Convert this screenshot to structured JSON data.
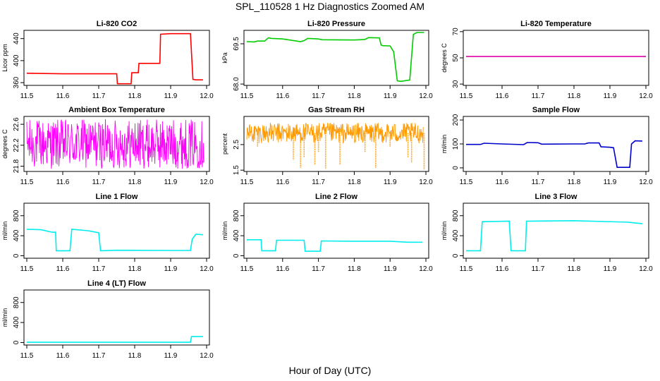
{
  "figure": {
    "title": "SPL_110528 1 Hz Diagnostics Zoomed AM",
    "xlabel": "Hour of Day (UTC)"
  },
  "chart_data": [
    {
      "type": "line",
      "title": "Li-820 CO2",
      "ylabel": "Licor ppm",
      "color": "#ff0000",
      "xlim": [
        11.5,
        12.0
      ],
      "ylim": [
        355,
        455
      ],
      "xticks": [
        "11.5",
        "11.6",
        "11.7",
        "11.8",
        "11.9",
        "12.0"
      ],
      "yticks": [
        360,
        400,
        440
      ],
      "yticklabels": [
        "360",
        "400",
        "440"
      ],
      "x": [
        11.5,
        11.6,
        11.7,
        11.75,
        11.752,
        11.78,
        11.79,
        11.792,
        11.8,
        11.81,
        11.812,
        11.85,
        11.87,
        11.872,
        11.9,
        11.955,
        11.962,
        11.97,
        11.99
      ],
      "y": [
        377,
        376,
        376,
        376,
        358,
        358,
        358,
        378,
        378,
        378,
        395,
        395,
        395,
        448,
        449,
        449,
        366,
        365,
        365
      ]
    },
    {
      "type": "line",
      "title": "Li-820 Pressure",
      "ylabel": "kPa",
      "color": "#00cc00",
      "xlim": [
        11.5,
        12.0
      ],
      "ylim": [
        67.95,
        70.0
      ],
      "xticks": [
        "11.5",
        "11.6",
        "11.7",
        "11.8",
        "11.9",
        "12.0"
      ],
      "yticks": [
        68.0,
        69.5
      ],
      "yticklabels": [
        "68.0",
        "69.5"
      ],
      "x": [
        11.5,
        11.52,
        11.53,
        11.55,
        11.56,
        11.57,
        11.6,
        11.65,
        11.66,
        11.67,
        11.7,
        11.71,
        11.8,
        11.83,
        11.84,
        11.87,
        11.875,
        11.88,
        11.9,
        11.91,
        11.92,
        11.93,
        11.955,
        11.965,
        11.975,
        11.995
      ],
      "y": [
        69.58,
        69.57,
        69.6,
        69.6,
        69.72,
        69.7,
        69.68,
        69.58,
        69.62,
        69.7,
        69.68,
        69.65,
        69.64,
        69.66,
        69.73,
        69.72,
        69.45,
        69.43,
        69.42,
        69.2,
        68.12,
        68.1,
        68.15,
        69.85,
        69.92,
        69.92
      ]
    },
    {
      "type": "line",
      "title": "Li-820 Temperature",
      "ylabel": "degrees C",
      "color": "#dd00aa",
      "xlim": [
        11.5,
        12.0
      ],
      "ylim": [
        29,
        71
      ],
      "xticks": [
        "11.5",
        "11.6",
        "11.7",
        "11.8",
        "11.9",
        "12.0"
      ],
      "yticks": [
        30,
        50,
        70
      ],
      "yticklabels": [
        "30",
        "50",
        "70"
      ],
      "x": [
        11.5,
        12.0
      ],
      "y": [
        51,
        51
      ]
    },
    {
      "type": "line",
      "title": "Ambient Box Temperature",
      "ylabel": "degrees C",
      "color": "#ff00ff",
      "style": "noisy",
      "xlim": [
        11.5,
        12.0
      ],
      "ylim": [
        21.7,
        22.75
      ],
      "xticks": [
        "11.5",
        "11.6",
        "11.7",
        "11.8",
        "11.9",
        "12.0"
      ],
      "yticks": [
        21.8,
        22.2,
        22.6
      ],
      "yticklabels": [
        "21.8",
        "22.2",
        "22.6"
      ],
      "x": [
        11.5,
        12.0
      ],
      "y": [
        22.3,
        22.3
      ],
      "band": [
        21.75,
        22.7
      ]
    },
    {
      "type": "line",
      "title": "Gas Stream RH",
      "ylabel": "percent",
      "color": "#ff9900",
      "style": "noisy",
      "xlim": [
        11.5,
        12.0
      ],
      "ylim": [
        1.45,
        3.6
      ],
      "xticks": [
        "11.5",
        "11.6",
        "11.7",
        "11.8",
        "11.9",
        "12.0"
      ],
      "yticks": [
        1.5,
        2.5
      ],
      "yticklabels": [
        "1.5",
        "2.5"
      ],
      "x": [
        11.5,
        12.0
      ],
      "y": [
        3.0,
        3.0
      ],
      "band": [
        2.55,
        3.35
      ],
      "spikes_x": [
        11.53,
        11.63,
        11.65,
        11.66,
        11.69,
        11.7,
        11.72,
        11.76,
        11.83,
        11.86,
        11.9,
        11.95,
        11.96,
        11.995
      ],
      "spikes_y": [
        2.4,
        1.9,
        1.6,
        2.0,
        1.7,
        2.2,
        1.55,
        1.7,
        2.2,
        1.6,
        2.4,
        2.0,
        1.8,
        1.5
      ]
    },
    {
      "type": "line",
      "title": "Sample Flow",
      "ylabel": "ml/min",
      "color": "#0000cc",
      "xlim": [
        11.5,
        12.0
      ],
      "ylim": [
        -15,
        215
      ],
      "xticks": [
        "11.5",
        "11.6",
        "11.7",
        "11.8",
        "11.9",
        "12.0"
      ],
      "yticks": [
        0,
        100,
        200
      ],
      "yticklabels": [
        "0",
        "100",
        "200"
      ],
      "x": [
        11.5,
        11.54,
        11.55,
        11.6,
        11.66,
        11.67,
        11.7,
        11.71,
        11.8,
        11.83,
        11.84,
        11.87,
        11.875,
        11.9,
        11.91,
        11.92,
        11.955,
        11.96,
        11.97,
        11.99
      ],
      "y": [
        98,
        98,
        103,
        100,
        97,
        106,
        105,
        99,
        100,
        100,
        104,
        104,
        88,
        86,
        84,
        2,
        2,
        100,
        113,
        112
      ]
    },
    {
      "type": "line",
      "title": "Line 1 Flow",
      "ylabel": "ml/min",
      "color": "#00eeee",
      "xlim": [
        11.5,
        12.0
      ],
      "ylim": [
        -50,
        1050
      ],
      "xticks": [
        "11.5",
        "11.6",
        "11.7",
        "11.8",
        "11.9",
        "12.0"
      ],
      "yticks": [
        0,
        400,
        800
      ],
      "yticklabels": [
        "0",
        "400",
        "800"
      ],
      "x": [
        11.5,
        11.54,
        11.57,
        11.58,
        11.582,
        11.62,
        11.625,
        11.67,
        11.7,
        11.705,
        11.75,
        11.9,
        11.955,
        11.96,
        11.97,
        11.99
      ],
      "y": [
        530,
        520,
        470,
        470,
        100,
        100,
        530,
        500,
        460,
        100,
        110,
        105,
        105,
        330,
        430,
        420
      ]
    },
    {
      "type": "line",
      "title": "Line 2 Flow",
      "ylabel": "ml/min",
      "color": "#00eeee",
      "xlim": [
        11.5,
        12.0
      ],
      "ylim": [
        -50,
        1050
      ],
      "xticks": [
        "11.5",
        "11.6",
        "11.7",
        "11.8",
        "11.9",
        "12.0"
      ],
      "yticks": [
        0,
        400,
        800
      ],
      "yticklabels": [
        "0",
        "400",
        "800"
      ],
      "x": [
        11.5,
        11.54,
        11.542,
        11.58,
        11.583,
        11.66,
        11.663,
        11.705,
        11.708,
        11.8,
        11.9,
        11.95,
        11.99
      ],
      "y": [
        320,
        320,
        100,
        100,
        310,
        310,
        90,
        90,
        295,
        290,
        290,
        270,
        270
      ]
    },
    {
      "type": "line",
      "title": "Line 3 Flow",
      "ylabel": "ml/min",
      "color": "#00eeee",
      "xlim": [
        11.5,
        12.0
      ],
      "ylim": [
        -50,
        1050
      ],
      "xticks": [
        "11.5",
        "11.6",
        "11.7",
        "11.8",
        "11.9",
        "12.0"
      ],
      "yticks": [
        0,
        400,
        800
      ],
      "yticklabels": [
        "0",
        "400",
        "800"
      ],
      "x": [
        11.5,
        11.54,
        11.545,
        11.62,
        11.625,
        11.665,
        11.668,
        11.8,
        11.95,
        11.99
      ],
      "y": [
        100,
        100,
        680,
        690,
        100,
        100,
        690,
        700,
        670,
        640
      ]
    },
    {
      "type": "line",
      "title": "Line 4 (LT) Flow",
      "ylabel": "ml/min",
      "color": "#00eeee",
      "xlim": [
        11.5,
        12.0
      ],
      "ylim": [
        -50,
        1050
      ],
      "xticks": [
        "11.5",
        "11.6",
        "11.7",
        "11.8",
        "11.9",
        "12.0"
      ],
      "yticks": [
        0,
        400,
        800
      ],
      "yticklabels": [
        "0",
        "400",
        "800"
      ],
      "x": [
        11.5,
        11.95,
        11.955,
        11.958,
        11.99
      ],
      "y": [
        5,
        5,
        5,
        120,
        120
      ]
    }
  ]
}
